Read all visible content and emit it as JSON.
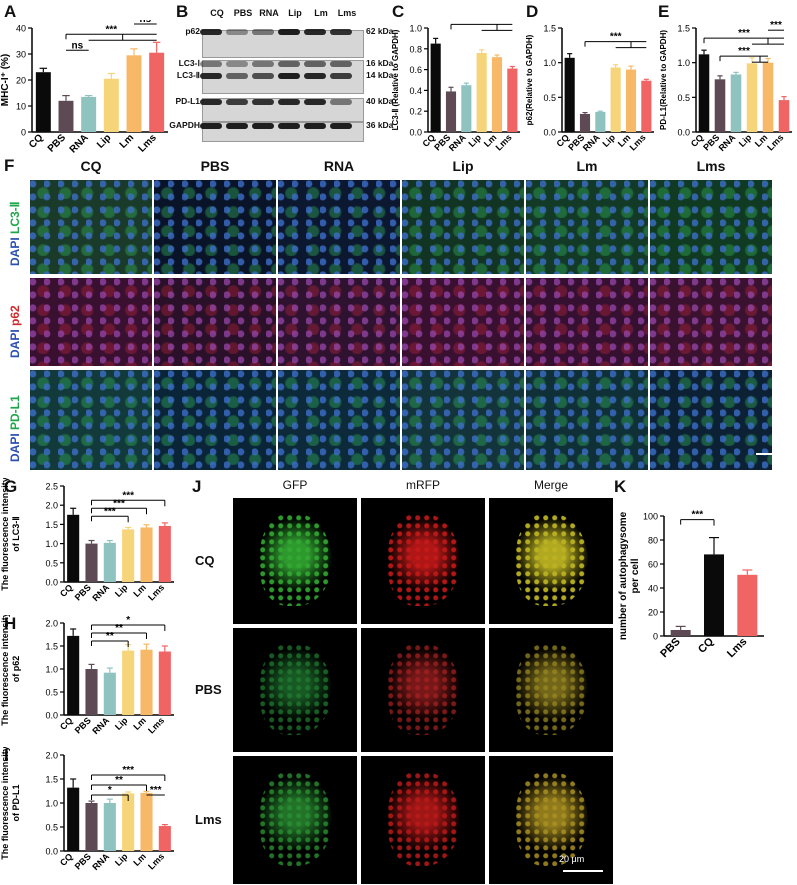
{
  "panels": {
    "A": {
      "label": "A"
    },
    "B": {
      "label": "B"
    },
    "C": {
      "label": "C"
    },
    "D": {
      "label": "D"
    },
    "E": {
      "label": "E"
    },
    "F": {
      "label": "F"
    },
    "G": {
      "label": "G"
    },
    "H": {
      "label": "H"
    },
    "I": {
      "label": "I"
    },
    "J": {
      "label": "J"
    },
    "K": {
      "label": "K"
    }
  },
  "colors": {
    "CQ": "#0a0a0a",
    "PBS": "#5e4a55",
    "RNA": "#8fc3c0",
    "Lip": "#f6d47a",
    "Lm": "#f7b967",
    "Lms": "#f06464"
  },
  "chart_data": [
    {
      "id": "A",
      "type": "bar",
      "categories": [
        "CQ",
        "PBS",
        "RNA",
        "Lip",
        "Lm",
        "Lms"
      ],
      "values": [
        23,
        12,
        13.5,
        20.5,
        29.5,
        30.5
      ],
      "errors": [
        1.5,
        2,
        0.5,
        2,
        2.5,
        4
      ],
      "ylabel": "MHC-I⁺ (%)",
      "ylim": [
        0,
        40
      ],
      "yticks": [
        "0",
        "10",
        "20",
        "30",
        "40"
      ],
      "annotations": [
        "***",
        "ns",
        "ns"
      ]
    },
    {
      "id": "C",
      "type": "bar",
      "categories": [
        "CQ",
        "PBS",
        "RNA",
        "Lip",
        "Lm",
        "Lms"
      ],
      "values": [
        0.85,
        0.39,
        0.45,
        0.76,
        0.72,
        0.61
      ],
      "errors": [
        0.05,
        0.04,
        0.02,
        0.03,
        0.02,
        0.02
      ],
      "ylabel": "LC3-Ⅱ (Relative to GAPDH)",
      "ylim": [
        0,
        1.0
      ],
      "yticks": [
        "0.0",
        "0.2",
        "0.4",
        "0.6",
        "0.8",
        "1.0"
      ],
      "annotations": [
        "***"
      ]
    },
    {
      "id": "D",
      "type": "bar",
      "categories": [
        "CQ",
        "PBS",
        "RNA",
        "Lip",
        "Lm",
        "Lms"
      ],
      "values": [
        1.07,
        0.26,
        0.29,
        0.93,
        0.9,
        0.74
      ],
      "errors": [
        0.06,
        0.02,
        0.01,
        0.04,
        0.05,
        0.02
      ],
      "ylabel": "p62(Relative to GAPDH)",
      "ylim": [
        0,
        1.5
      ],
      "yticks": [
        "0.0",
        "0.5",
        "1.0",
        "1.5"
      ],
      "annotations": [
        "***"
      ]
    },
    {
      "id": "E",
      "type": "bar",
      "categories": [
        "CQ",
        "PBS",
        "RNA",
        "Lip",
        "Lm",
        "Lms"
      ],
      "values": [
        1.12,
        0.76,
        0.83,
        0.99,
        1.0,
        0.46
      ],
      "errors": [
        0.06,
        0.05,
        0.03,
        0.08,
        0.06,
        0.05
      ],
      "ylabel": "PD-L1(Relative to GAPDH)",
      "ylim": [
        0,
        1.5
      ],
      "yticks": [
        "0.0",
        "0.5",
        "1.0",
        "1.5"
      ],
      "annotations": [
        "***",
        "***",
        "***"
      ]
    },
    {
      "id": "G",
      "type": "bar",
      "categories": [
        "CQ",
        "PBS",
        "RNA",
        "Lip",
        "Lm",
        "Lms"
      ],
      "values": [
        1.75,
        1.0,
        1.02,
        1.37,
        1.42,
        1.46
      ],
      "errors": [
        0.17,
        0.08,
        0.06,
        0.05,
        0.07,
        0.08
      ],
      "ylabel": "The fluorescence intensity of LC3-Ⅱ",
      "ylim": [
        0,
        2.5
      ],
      "yticks": [
        "0.0",
        "0.5",
        "1.0",
        "1.5",
        "2.0",
        "2.5"
      ],
      "annotations": [
        "***",
        "***",
        "***"
      ]
    },
    {
      "id": "H",
      "type": "bar",
      "categories": [
        "CQ",
        "PBS",
        "RNA",
        "Lip",
        "Lm",
        "Lms"
      ],
      "values": [
        1.72,
        1.0,
        0.92,
        1.4,
        1.42,
        1.38
      ],
      "errors": [
        0.15,
        0.1,
        0.1,
        0.13,
        0.12,
        0.12
      ],
      "ylabel": "The fluorescence intensity of p62",
      "ylim": [
        0,
        2.0
      ],
      "yticks": [
        "0.0",
        "0.5",
        "1.0",
        "1.5",
        "2.0"
      ],
      "annotations": [
        "*",
        "**",
        "**"
      ]
    },
    {
      "id": "I",
      "type": "bar",
      "categories": [
        "CQ",
        "PBS",
        "RNA",
        "Lip",
        "Lm",
        "Lms"
      ],
      "values": [
        1.32,
        1.0,
        1.0,
        1.2,
        1.21,
        0.52
      ],
      "errors": [
        0.18,
        0.04,
        0.08,
        0.03,
        0.03,
        0.03
      ],
      "ylabel": "The fluorescence intensity of PD-L1",
      "ylim": [
        0,
        2.0
      ],
      "yticks": [
        "0.0",
        "0.5",
        "1.0",
        "1.5",
        "2.0"
      ],
      "annotations": [
        "***",
        "**",
        "*",
        "***"
      ]
    },
    {
      "id": "K",
      "type": "bar",
      "categories": [
        "PBS",
        "CQ",
        "Lms"
      ],
      "values": [
        5,
        68,
        51
      ],
      "errors": [
        3,
        14,
        4
      ],
      "ylabel": "number of autophagysome per cell",
      "ylim": [
        0,
        100
      ],
      "yticks": [
        "0",
        "20",
        "40",
        "60",
        "80",
        "100"
      ],
      "annotations": [
        "***"
      ]
    }
  ],
  "western": {
    "lanes": [
      "CQ",
      "PBS",
      "RNA",
      "Lip",
      "Lm",
      "Lms"
    ],
    "rows": [
      {
        "name": "p62",
        "kda": "62 kDa"
      },
      {
        "name": "LC3-Ⅰ",
        "kda": "16 kDa"
      },
      {
        "name": "LC3-Ⅱ",
        "kda": "14 kDa"
      },
      {
        "name": "PD-L1",
        "kda": "40 kDa"
      },
      {
        "name": "GAPDH",
        "kda": "36 kDa"
      }
    ]
  },
  "fpanel": {
    "columns": [
      "CQ",
      "PBS",
      "RNA",
      "Lip",
      "Lm",
      "Lms"
    ],
    "rows": [
      {
        "dapi": "DAPI",
        "marker": "LC3-Ⅱ",
        "marker_color": "#1fa64a"
      },
      {
        "dapi": "DAPI",
        "marker": "p62",
        "marker_color": "#d0282d"
      },
      {
        "dapi": "DAPI",
        "marker": "PD-L1",
        "marker_color": "#1fa64a"
      }
    ]
  },
  "jpanel": {
    "columns": [
      "GFP",
      "mRFP",
      "Merge"
    ],
    "rows": [
      "CQ",
      "PBS",
      "Lms"
    ],
    "scalebar": "20 μm"
  }
}
